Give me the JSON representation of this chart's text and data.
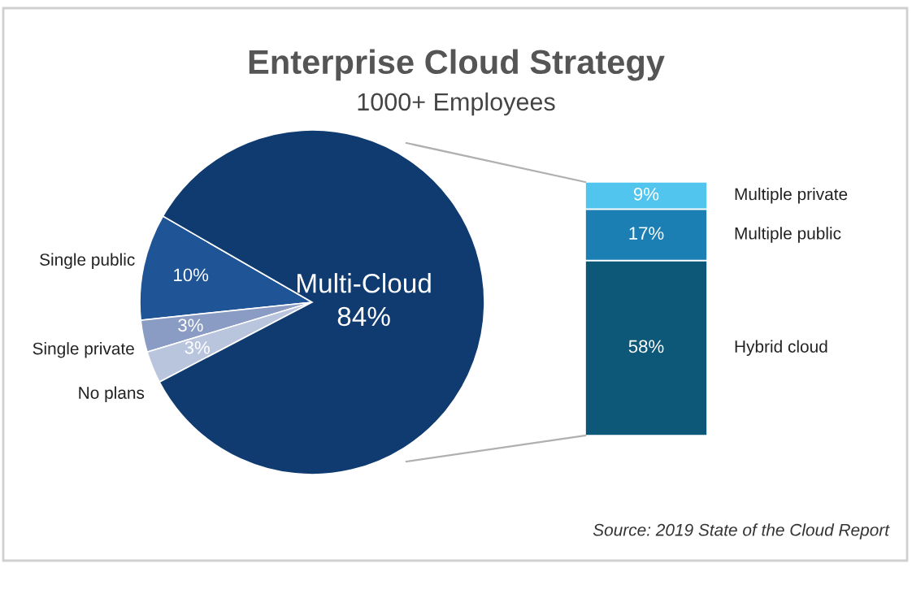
{
  "chart_data": [
    {
      "type": "pie",
      "title": "Enterprise Cloud Strategy",
      "subtitle": "1000+ Employees",
      "categories": [
        "Single public",
        "Single private",
        "No plans",
        "Multi-Cloud"
      ],
      "values": [
        10,
        3,
        3,
        84
      ],
      "value_labels": [
        "10%",
        "3%",
        "3%",
        "84%"
      ],
      "colors": [
        "#1f5596",
        "#8a9cc4",
        "#b9c5dd",
        "#0f3b70"
      ]
    },
    {
      "type": "bar",
      "stacked": true,
      "categories": [
        null
      ],
      "series": [
        {
          "name": "Hybrid cloud",
          "color": "#0d5878",
          "values": [
            58
          ],
          "value_labels": [
            "58%"
          ]
        },
        {
          "name": "Multiple public",
          "color": "#1b7fb4",
          "values": [
            17
          ],
          "value_labels": [
            "17%"
          ]
        },
        {
          "name": "Multiple private",
          "color": "#52c5ef",
          "values": [
            9
          ],
          "value_labels": [
            "9%"
          ]
        }
      ],
      "annotations": [
        "Source: 2019 State of the Cloud Report"
      ]
    }
  ]
}
